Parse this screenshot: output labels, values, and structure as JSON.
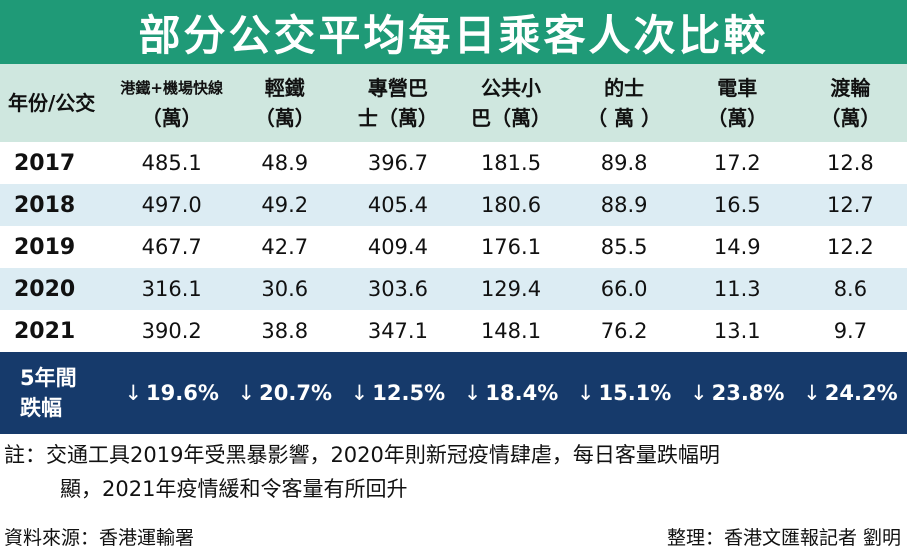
{
  "title": "部分公交平均每日乘客人次比較",
  "header": {
    "year_col": "年份/公交",
    "columns": [
      {
        "line1": "港鐵+機場快線",
        "line2": "（萬）",
        "small": true
      },
      {
        "line1": "輕鐵",
        "line2": "（萬）"
      },
      {
        "line1": "專營巴",
        "line2": "士（萬）"
      },
      {
        "line1": "公共小",
        "line2": "巴（萬）"
      },
      {
        "line1": "的士",
        "line2": "（ 萬 ）"
      },
      {
        "line1": "電車",
        "line2": "（萬）"
      },
      {
        "line1": "渡輪",
        "line2": "（萬）"
      }
    ]
  },
  "rows": [
    {
      "year": "2017",
      "values": [
        "485.1",
        "48.9",
        "396.7",
        "181.5",
        "89.8",
        "17.2",
        "12.8"
      ]
    },
    {
      "year": "2018",
      "values": [
        "497.0",
        "49.2",
        "405.4",
        "180.6",
        "88.9",
        "16.5",
        "12.7"
      ]
    },
    {
      "year": "2019",
      "values": [
        "467.7",
        "42.7",
        "409.4",
        "176.1",
        "85.5",
        "14.9",
        "12.2"
      ]
    },
    {
      "year": "2020",
      "values": [
        "316.1",
        "30.6",
        "303.6",
        "129.4",
        "66.0",
        "11.3",
        "8.6"
      ]
    },
    {
      "year": "2021",
      "values": [
        "390.2",
        "38.8",
        "347.1",
        "148.1",
        "76.2",
        "13.1",
        "9.7"
      ]
    }
  ],
  "fall_row": {
    "label_line1": "5年間",
    "label_line2": "跌幅",
    "arrow": "↓",
    "values": [
      "19.6%",
      "20.7%",
      "12.5%",
      "18.4%",
      "15.1%",
      "23.8%",
      "24.2%"
    ]
  },
  "note": {
    "line1": "註：交通工具2019年受黑暴影響，2020年則新冠疫情肆虐，每日客量跌幅明",
    "line2": "顯，2021年疫情緩和令客量有所回升"
  },
  "footer": {
    "source": "資料來源：香港運輸署",
    "credit": "整理：香港文匯報記者 劉明"
  },
  "colors": {
    "title_bg": "#1f9a77",
    "header_bg": "#cfe7df",
    "alt_row_bg": "#dcecf3",
    "fall_row_bg": "#163a6b"
  }
}
